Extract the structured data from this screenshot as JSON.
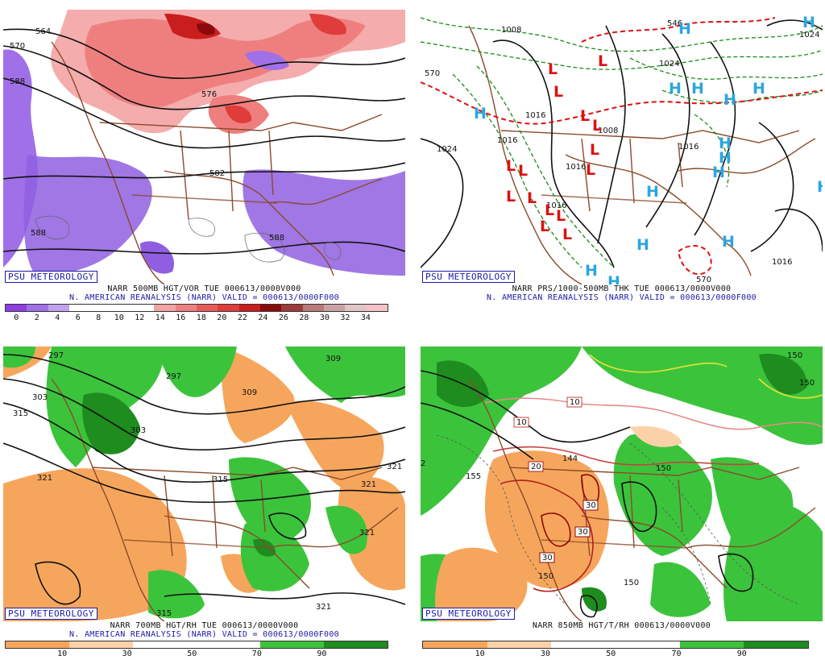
{
  "panels": [
    {
      "tag": "PSU METEOROLOGY",
      "title": "NARR 500MB HGT/VOR TUE 000613/0000V000",
      "subtitle": "N. AMERICAN REANALYSIS (NARR) VALID = 000613/0000F000",
      "scale_labels": [
        "0",
        "2",
        "4",
        "6",
        "8",
        "10",
        "12",
        "14",
        "16",
        "18",
        "20",
        "22",
        "24",
        "26",
        "28",
        "30",
        "32",
        "34"
      ],
      "contour_labels": [
        "564",
        "570",
        "588",
        "576",
        "582",
        "588",
        "588"
      ]
    },
    {
      "tag": "PSU METEOROLOGY",
      "title": "NARR PRS/1000-500MB THK TUE 000613/0000V000",
      "subtitle": "N. AMERICAN REANALYSIS (NARR) VALID = 000613/0000F000",
      "contour_labels": [
        "1008",
        "1024",
        "570",
        "1016",
        "1016",
        "1008",
        "1016",
        "1016",
        "1024",
        "546",
        "1024",
        "1016",
        "570",
        "1016"
      ]
    },
    {
      "tag": "PSU METEOROLOGY",
      "title": "NARR 700MB HGT/RH TUE 000613/0000V000",
      "subtitle": "N. AMERICAN REANALYSIS (NARR) VALID = 000613/0000F000",
      "scale_labels": [
        "10",
        "30",
        "50",
        "70",
        "90"
      ],
      "contour_labels": [
        "297",
        "309",
        "315",
        "297",
        "303",
        "309",
        "303",
        "321",
        "315",
        "321",
        "321",
        "321",
        "315",
        "321"
      ]
    },
    {
      "tag": "PSU METEOROLOGY",
      "title": "NARR 850MB HGT/T/RH 000613/0000V000",
      "subtitle": "",
      "scale_labels": [
        "10",
        "30",
        "50",
        "70",
        "90"
      ],
      "contour_labels": [
        "150",
        "150",
        "10",
        "10",
        "20",
        "30",
        "30",
        "30",
        "144",
        "150",
        "150",
        "150",
        "155",
        "2"
      ]
    }
  ],
  "colors": {
    "vor_scale": [
      "#8f3fe0",
      "#a070e8",
      "#c2a2f0",
      "#ffffff",
      "#ffffff",
      "#ffffff",
      "#ffffff",
      "#f3a3a3",
      "#ef7f7f",
      "#e85a5a",
      "#e03c3c",
      "#c81e1e",
      "#8b0a0a",
      "#9f3a3a",
      "#b87a7a",
      "#c9a3a3",
      "#e0c6c6",
      "#f6c4c8"
    ],
    "rh_scale": [
      "#f6a65c",
      "#fbd2a8",
      "#ffffff",
      "#ffffff",
      "#3cc33c",
      "#1e8c1e"
    ],
    "geo": "#8b4a2b",
    "low": "#dd1111",
    "high": "#2aa6e0"
  }
}
